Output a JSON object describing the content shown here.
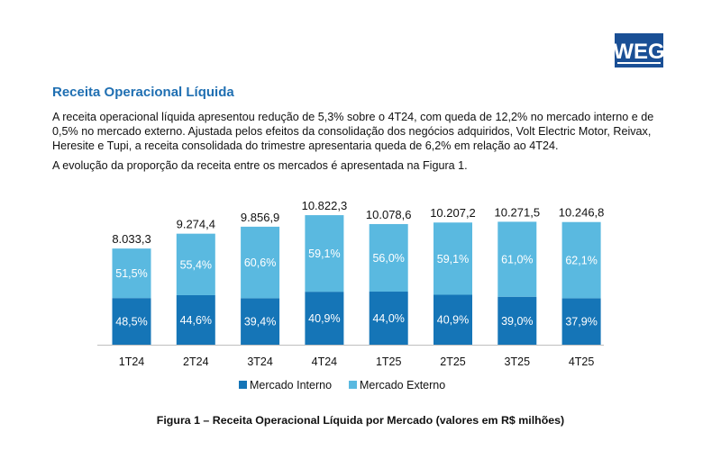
{
  "header": {
    "logo_text": "WEG",
    "section_title": "Receita Operacional Líquida",
    "paragraph1": "A receita operacional líquida apresentou redução de 5,3% sobre o 4T24, com queda de 12,2% no mercado interno e de 0,5% no mercado externo. Ajustada pelos efeitos da consolidação dos negócios adquiridos, Volt Electric Motor, Reivax, Heresite e Tupi, a receita consolidada do trimestre apresentaria queda de 6,2% em relação ao 4T24.",
    "paragraph2": "A evolução da proporção da receita entre os mercados é apresentada na Figura 1."
  },
  "colors": {
    "brand": "#1a4f95",
    "title": "#1f6fb2",
    "mercado_interno": "#1575b7",
    "mercado_externo": "#5ab9e0"
  },
  "chart_data": {
    "type": "bar",
    "stacked": true,
    "categories": [
      "1T24",
      "2T24",
      "3T24",
      "4T24",
      "1T25",
      "2T25",
      "3T25",
      "4T25"
    ],
    "totals": [
      8033.3,
      9274.4,
      9856.9,
      10822.3,
      10078.6,
      10207.2,
      10271.5,
      10246.8
    ],
    "total_labels": [
      "8.033,3",
      "9.274,4",
      "9.856,9",
      "10.822,3",
      "10.078,6",
      "10.207,2",
      "10.271,5",
      "10.246,8"
    ],
    "series": [
      {
        "name": "Mercado Interno",
        "percent": [
          48.5,
          44.6,
          39.4,
          40.9,
          44.0,
          40.9,
          39.0,
          37.9
        ],
        "labels": [
          "48,5%",
          "44,6%",
          "39,4%",
          "40,9%",
          "44,0%",
          "40,9%",
          "39,0%",
          "37,9%"
        ]
      },
      {
        "name": "Mercado Externo",
        "percent": [
          51.5,
          55.4,
          60.6,
          59.1,
          56.0,
          59.1,
          61.0,
          62.1
        ],
        "labels": [
          "51,5%",
          "55,4%",
          "60,6%",
          "59,1%",
          "56,0%",
          "59,1%",
          "61,0%",
          "62,1%"
        ]
      }
    ],
    "legend_position": "bottom",
    "grid": false,
    "title": "Figura 1 – Receita Operacional Líquida por Mercado (valores em R$ milhões)"
  }
}
